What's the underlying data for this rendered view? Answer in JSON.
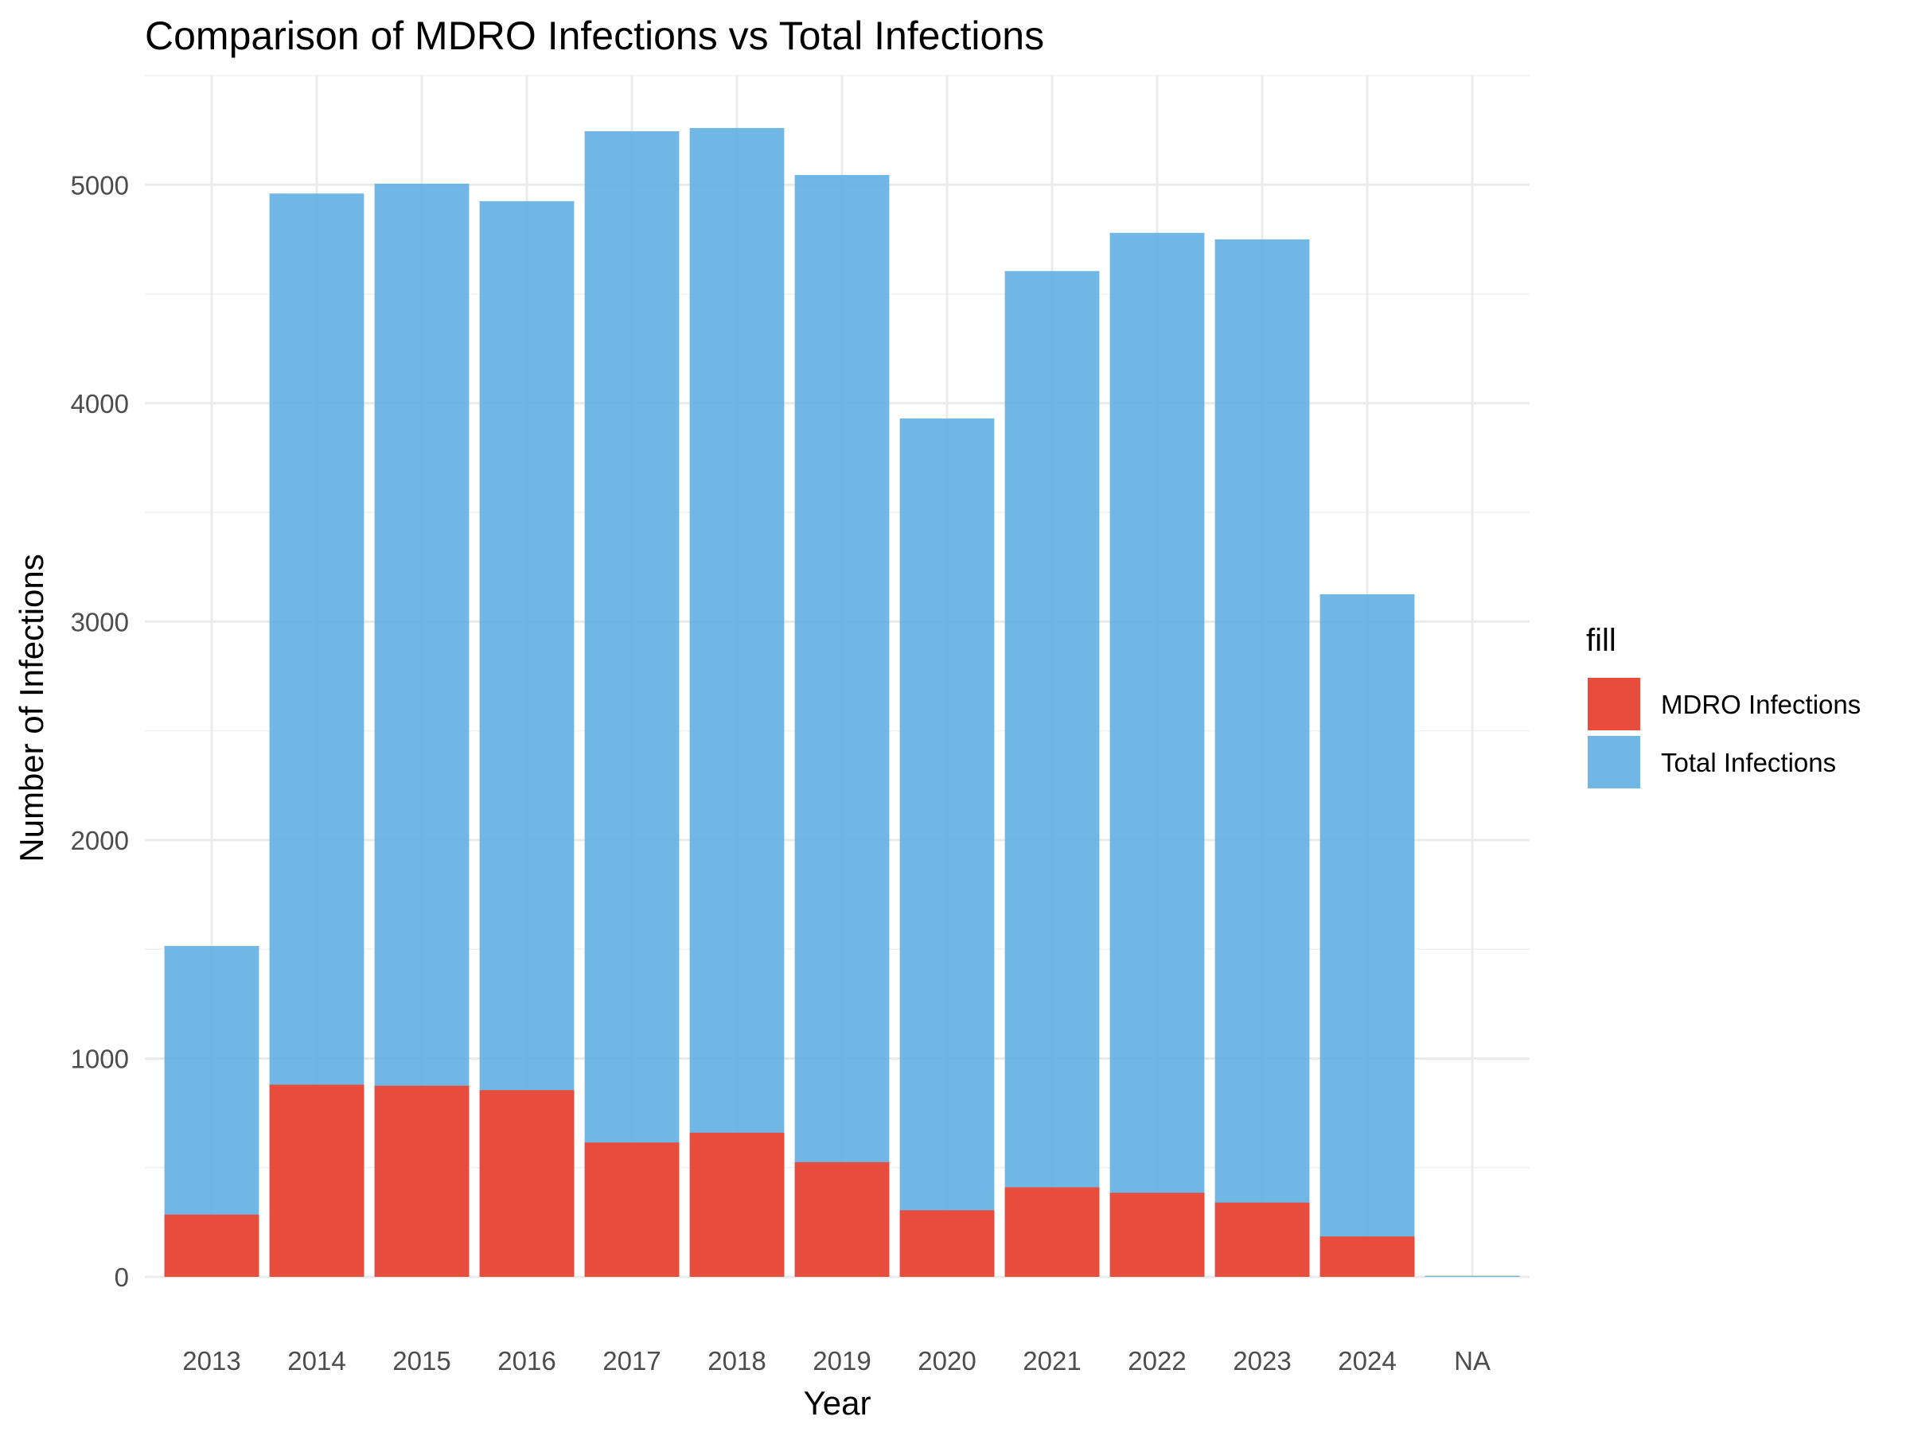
{
  "chart_data": {
    "type": "bar",
    "title": "Comparison of MDRO Infections vs Total Infections",
    "xlabel": "Year",
    "ylabel": "Number of Infections",
    "categories": [
      "2013",
      "2014",
      "2015",
      "2016",
      "2017",
      "2018",
      "2019",
      "2020",
      "2021",
      "2022",
      "2023",
      "2024",
      "NA"
    ],
    "series": [
      {
        "name": "Total Infections",
        "color": "#5DADE2",
        "values": [
          1515,
          4960,
          5005,
          4925,
          5245,
          5260,
          5045,
          3930,
          4605,
          4780,
          4750,
          3125,
          5
        ]
      },
      {
        "name": "MDRO Infections",
        "color": "#E74C3C",
        "values": [
          285,
          880,
          875,
          855,
          615,
          660,
          525,
          305,
          410,
          385,
          340,
          185,
          0
        ]
      }
    ],
    "ylim": [
      0,
      5500
    ],
    "yticks": [
      0,
      1000,
      2000,
      3000,
      4000,
      5000
    ],
    "grid": true,
    "legend": {
      "title": "fill",
      "position": "right",
      "entries": [
        "MDRO Infections",
        "Total Infections"
      ]
    }
  }
}
